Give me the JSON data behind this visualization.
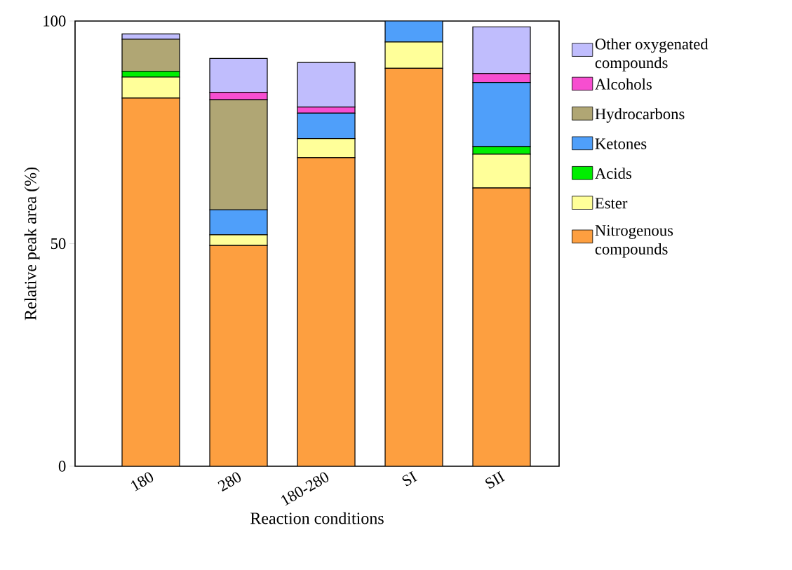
{
  "chart_data": {
    "type": "bar",
    "stacked": true,
    "xlabel": "Reaction conditions",
    "ylabel": "Relative peak area  (%)",
    "categories": [
      "180",
      "280",
      "180-280",
      "SI",
      "SII"
    ],
    "ylim": [
      0,
      100
    ],
    "yticks": [
      0,
      50,
      100
    ],
    "grid": false,
    "legend": "right",
    "series": [
      {
        "name": "Nitrogenous compounds",
        "color": "#fd9f40",
        "values": [
          82.7,
          49.6,
          69.3,
          89.4,
          62.5
        ]
      },
      {
        "name": "Ester",
        "color": "#ffff99",
        "values": [
          4.7,
          2.4,
          4.3,
          5.9,
          7.6
        ]
      },
      {
        "name": "Acids",
        "color": "#00ee00",
        "values": [
          1.3,
          0,
          0,
          0,
          1.7
        ]
      },
      {
        "name": "Ketones",
        "color": "#4f9ffa",
        "values": [
          0,
          5.6,
          5.7,
          4.7,
          14.4
        ]
      },
      {
        "name": "Hydrocarbons",
        "color": "#b0a674",
        "values": [
          7.2,
          24.7,
          0,
          0,
          0
        ]
      },
      {
        "name": "Alcohols",
        "color": "#f74ed0",
        "values": [
          0,
          1.7,
          1.4,
          0,
          2.0
        ]
      },
      {
        "name": "Other oxygenated compounds",
        "color": "#c0bdfd",
        "values": [
          1.2,
          7.6,
          10.0,
          0,
          10.5
        ]
      }
    ]
  }
}
